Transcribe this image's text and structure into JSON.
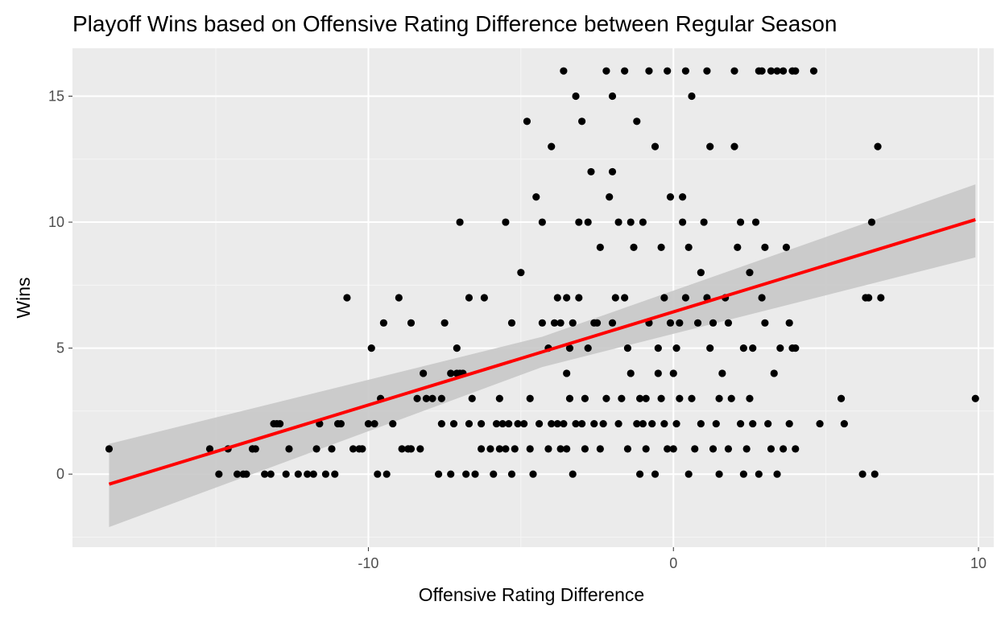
{
  "chart_data": {
    "type": "scatter",
    "title": "Playoff Wins based on Offensive Rating Difference between Regular Season",
    "xlabel": "Offensive Rating Difference",
    "ylabel": "Wins",
    "xlim": [
      -19.7,
      10.5
    ],
    "ylim": [
      -2.9,
      16.9
    ],
    "xticks": [
      -10,
      0,
      10
    ],
    "xtick_labels": [
      "-10",
      "0",
      "10"
    ],
    "yticks": [
      0,
      5,
      10,
      15
    ],
    "ytick_labels": [
      "0",
      "5",
      "10",
      "15"
    ],
    "grid": true,
    "background": "#EBEBEB",
    "point_color": "#000000",
    "fit_color": "#FF0000",
    "band_color": "#C8C8C8",
    "regression": {
      "method": "linear",
      "start": [
        -18.5,
        -0.4
      ],
      "end": [
        9.9,
        10.1
      ],
      "band_start": [
        -2.1,
        1.2
      ],
      "band_end": [
        8.6,
        11.5
      ]
    },
    "points": [
      [
        -18.5,
        1
      ],
      [
        -15.2,
        1
      ],
      [
        -14.9,
        0
      ],
      [
        -14.6,
        1
      ],
      [
        -14.3,
        0
      ],
      [
        -14.1,
        0
      ],
      [
        -14.0,
        0
      ],
      [
        -13.8,
        1
      ],
      [
        -13.8,
        1
      ],
      [
        -13.7,
        1
      ],
      [
        -13.4,
        0
      ],
      [
        -13.2,
        0
      ],
      [
        -13.1,
        2
      ],
      [
        -13.0,
        2
      ],
      [
        -12.9,
        2
      ],
      [
        -12.7,
        0
      ],
      [
        -12.6,
        1
      ],
      [
        -12.3,
        0
      ],
      [
        -12.0,
        0
      ],
      [
        -11.8,
        0
      ],
      [
        -11.7,
        1
      ],
      [
        -11.6,
        2
      ],
      [
        -11.4,
        0
      ],
      [
        -11.2,
        1
      ],
      [
        -11.1,
        0
      ],
      [
        -11.0,
        2
      ],
      [
        -10.9,
        2
      ],
      [
        -10.7,
        7
      ],
      [
        -10.5,
        1
      ],
      [
        -10.3,
        1
      ],
      [
        -10.2,
        1
      ],
      [
        -10.0,
        2
      ],
      [
        -9.8,
        2
      ],
      [
        -9.9,
        5
      ],
      [
        -9.7,
        0
      ],
      [
        -9.6,
        3
      ],
      [
        -9.5,
        6
      ],
      [
        -9.4,
        0
      ],
      [
        -9.2,
        2
      ],
      [
        -9.0,
        7
      ],
      [
        -8.9,
        1
      ],
      [
        -8.7,
        1
      ],
      [
        -8.6,
        6
      ],
      [
        -8.6,
        1
      ],
      [
        -8.4,
        3
      ],
      [
        -8.3,
        1
      ],
      [
        -8.2,
        4
      ],
      [
        -8.1,
        3
      ],
      [
        -7.9,
        3
      ],
      [
        -7.7,
        0
      ],
      [
        -7.6,
        3
      ],
      [
        -7.6,
        2
      ],
      [
        -7.5,
        6
      ],
      [
        -7.3,
        0
      ],
      [
        -7.3,
        4
      ],
      [
        -7.2,
        2
      ],
      [
        -7.1,
        4
      ],
      [
        -7.1,
        5
      ],
      [
        -7.0,
        4
      ],
      [
        -7.0,
        10
      ],
      [
        -6.9,
        4
      ],
      [
        -6.8,
        0
      ],
      [
        -6.7,
        7
      ],
      [
        -6.7,
        2
      ],
      [
        -6.6,
        3
      ],
      [
        -6.5,
        0
      ],
      [
        -6.3,
        1
      ],
      [
        -6.3,
        2
      ],
      [
        -6.2,
        7
      ],
      [
        -6.0,
        1
      ],
      [
        -5.9,
        0
      ],
      [
        -5.8,
        2
      ],
      [
        -5.7,
        1
      ],
      [
        -5.7,
        3
      ],
      [
        -5.6,
        2
      ],
      [
        -5.5,
        1
      ],
      [
        -5.5,
        10
      ],
      [
        -5.4,
        2
      ],
      [
        -5.3,
        6
      ],
      [
        -5.3,
        0
      ],
      [
        -5.2,
        1
      ],
      [
        -5.1,
        2
      ],
      [
        -5.0,
        8
      ],
      [
        -4.9,
        2
      ],
      [
        -4.8,
        14
      ],
      [
        -4.7,
        3
      ],
      [
        -4.7,
        1
      ],
      [
        -4.6,
        0
      ],
      [
        -4.5,
        11
      ],
      [
        -4.4,
        2
      ],
      [
        -4.3,
        10
      ],
      [
        -4.3,
        6
      ],
      [
        -4.1,
        1
      ],
      [
        -4.1,
        5
      ],
      [
        -4.0,
        2
      ],
      [
        -4.0,
        13
      ],
      [
        -3.9,
        6
      ],
      [
        -3.8,
        2
      ],
      [
        -3.8,
        7
      ],
      [
        -3.7,
        1
      ],
      [
        -3.7,
        6
      ],
      [
        -3.6,
        2
      ],
      [
        -3.6,
        16
      ],
      [
        -3.5,
        1
      ],
      [
        -3.5,
        4
      ],
      [
        -3.5,
        7
      ],
      [
        -3.4,
        3
      ],
      [
        -3.4,
        5
      ],
      [
        -3.3,
        6
      ],
      [
        -3.3,
        0
      ],
      [
        -3.2,
        2
      ],
      [
        -3.2,
        15
      ],
      [
        -3.1,
        10
      ],
      [
        -3.1,
        7
      ],
      [
        -3.0,
        2
      ],
      [
        -3.0,
        14
      ],
      [
        -2.9,
        1
      ],
      [
        -2.9,
        3
      ],
      [
        -2.8,
        10
      ],
      [
        -2.8,
        5
      ],
      [
        -2.7,
        12
      ],
      [
        -2.6,
        2
      ],
      [
        -2.6,
        6
      ],
      [
        -2.5,
        6
      ],
      [
        -2.4,
        9
      ],
      [
        -2.4,
        1
      ],
      [
        -2.3,
        2
      ],
      [
        -2.2,
        16
      ],
      [
        -2.2,
        3
      ],
      [
        -2.1,
        11
      ],
      [
        -2.0,
        6
      ],
      [
        -2.0,
        12
      ],
      [
        -2.0,
        15
      ],
      [
        -1.9,
        7
      ],
      [
        -1.8,
        10
      ],
      [
        -1.8,
        2
      ],
      [
        -1.7,
        3
      ],
      [
        -1.6,
        7
      ],
      [
        -1.6,
        16
      ],
      [
        -1.5,
        1
      ],
      [
        -1.5,
        5
      ],
      [
        -1.4,
        4
      ],
      [
        -1.4,
        10
      ],
      [
        -1.3,
        9
      ],
      [
        -1.2,
        2
      ],
      [
        -1.2,
        14
      ],
      [
        -1.1,
        3
      ],
      [
        -1.1,
        0
      ],
      [
        -1.0,
        2
      ],
      [
        -1.0,
        10
      ],
      [
        -0.9,
        1
      ],
      [
        -0.9,
        3
      ],
      [
        -0.8,
        16
      ],
      [
        -0.8,
        6
      ],
      [
        -0.7,
        2
      ],
      [
        -0.6,
        0
      ],
      [
        -0.6,
        13
      ],
      [
        -0.5,
        4
      ],
      [
        -0.5,
        5
      ],
      [
        -0.4,
        3
      ],
      [
        -0.4,
        9
      ],
      [
        -0.3,
        2
      ],
      [
        -0.3,
        7
      ],
      [
        -0.2,
        1
      ],
      [
        -0.2,
        16
      ],
      [
        -0.1,
        6
      ],
      [
        -0.1,
        11
      ],
      [
        0.0,
        4
      ],
      [
        0.0,
        1
      ],
      [
        0.1,
        2
      ],
      [
        0.1,
        5
      ],
      [
        0.2,
        3
      ],
      [
        0.2,
        6
      ],
      [
        0.3,
        11
      ],
      [
        0.3,
        10
      ],
      [
        0.4,
        7
      ],
      [
        0.4,
        16
      ],
      [
        0.5,
        9
      ],
      [
        0.5,
        0
      ],
      [
        0.6,
        15
      ],
      [
        0.6,
        3
      ],
      [
        0.7,
        1
      ],
      [
        0.8,
        6
      ],
      [
        0.9,
        8
      ],
      [
        0.9,
        2
      ],
      [
        1.0,
        10
      ],
      [
        1.1,
        7
      ],
      [
        1.1,
        16
      ],
      [
        1.2,
        5
      ],
      [
        1.2,
        13
      ],
      [
        1.3,
        1
      ],
      [
        1.3,
        6
      ],
      [
        1.4,
        2
      ],
      [
        1.5,
        3
      ],
      [
        1.5,
        0
      ],
      [
        1.6,
        4
      ],
      [
        1.7,
        7
      ],
      [
        1.8,
        6
      ],
      [
        1.8,
        1
      ],
      [
        1.9,
        3
      ],
      [
        2.0,
        13
      ],
      [
        2.0,
        16
      ],
      [
        2.1,
        9
      ],
      [
        2.2,
        2
      ],
      [
        2.2,
        10
      ],
      [
        2.3,
        5
      ],
      [
        2.3,
        0
      ],
      [
        2.4,
        1
      ],
      [
        2.5,
        8
      ],
      [
        2.5,
        3
      ],
      [
        2.6,
        5
      ],
      [
        2.6,
        2
      ],
      [
        2.7,
        10
      ],
      [
        2.8,
        16
      ],
      [
        2.8,
        0
      ],
      [
        2.9,
        7
      ],
      [
        2.9,
        16
      ],
      [
        3.0,
        6
      ],
      [
        3.0,
        9
      ],
      [
        3.1,
        2
      ],
      [
        3.2,
        16
      ],
      [
        3.2,
        1
      ],
      [
        3.3,
        4
      ],
      [
        3.4,
        16
      ],
      [
        3.4,
        0
      ],
      [
        3.5,
        5
      ],
      [
        3.6,
        16
      ],
      [
        3.6,
        1
      ],
      [
        3.7,
        9
      ],
      [
        3.8,
        6
      ],
      [
        3.8,
        2
      ],
      [
        3.9,
        5
      ],
      [
        3.9,
        16
      ],
      [
        4.0,
        1
      ],
      [
        4.0,
        5
      ],
      [
        4.0,
        16
      ],
      [
        4.6,
        16
      ],
      [
        4.8,
        2
      ],
      [
        5.5,
        3
      ],
      [
        5.6,
        2
      ],
      [
        6.2,
        0
      ],
      [
        6.3,
        7
      ],
      [
        6.4,
        7
      ],
      [
        6.5,
        10
      ],
      [
        6.6,
        0
      ],
      [
        6.7,
        13
      ],
      [
        6.8,
        7
      ],
      [
        9.9,
        3
      ]
    ]
  }
}
